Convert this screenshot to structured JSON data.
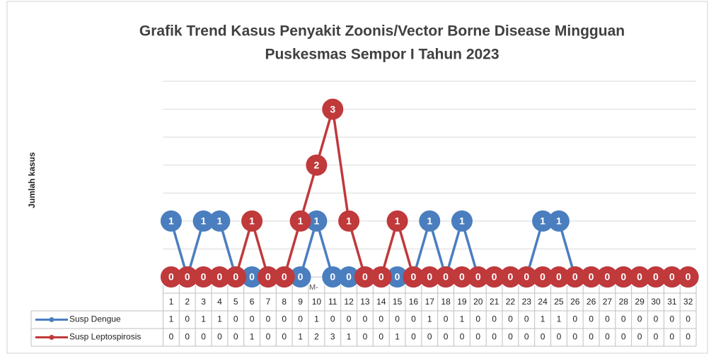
{
  "chart_data": {
    "type": "line",
    "title": "Grafik Trend Kasus Penyakit Zoonis/Vector Borne Disease Mingguan",
    "subtitle": "Puskesmas Sempor I Tahun 2023",
    "y_label": "Jumlah kasus",
    "annotation": "M-",
    "categories": [
      "1",
      "2",
      "3",
      "4",
      "5",
      "6",
      "7",
      "8",
      "9",
      "10",
      "11",
      "12",
      "13",
      "14",
      "15",
      "16",
      "17",
      "18",
      "19",
      "20",
      "21",
      "22",
      "23",
      "24",
      "25",
      "26",
      "26",
      "27",
      "28",
      "29",
      "30",
      "31",
      "32"
    ],
    "series": [
      {
        "name": "Susp Dengue",
        "color": "#4a7ebf",
        "values": [
          1,
          0,
          1,
          1,
          0,
          0,
          0,
          0,
          0,
          1,
          0,
          0,
          0,
          0,
          0,
          0,
          1,
          0,
          1,
          0,
          0,
          0,
          0,
          1,
          1,
          0,
          0,
          0,
          0,
          0,
          0,
          0,
          0
        ]
      },
      {
        "name": "Susp Leptospirosis",
        "color": "#c0393b",
        "values": [
          0,
          0,
          0,
          0,
          0,
          1,
          0,
          0,
          1,
          2,
          3,
          1,
          0,
          0,
          1,
          0,
          0,
          0,
          0,
          0,
          0,
          0,
          0,
          0,
          0,
          0,
          0,
          0,
          0,
          0,
          0,
          0,
          0
        ]
      }
    ],
    "ylim": [
      0,
      3.5
    ],
    "yticks": [
      0,
      0.5,
      1,
      1.5,
      2,
      2.5,
      3,
      3.5
    ],
    "grid": true
  }
}
